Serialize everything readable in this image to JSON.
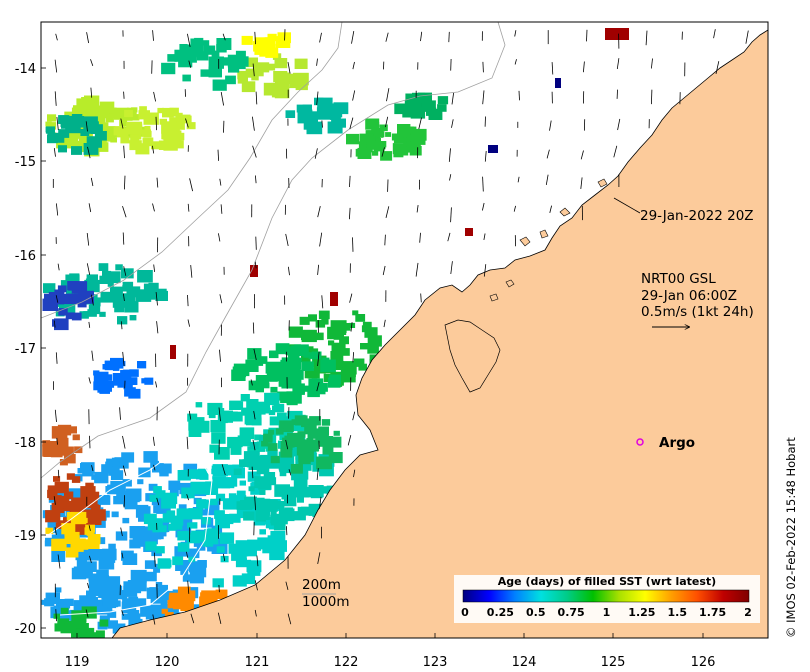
{
  "map": {
    "x_ticks": [
      "119",
      "120",
      "121",
      "122",
      "123",
      "124",
      "125",
      "126"
    ],
    "y_ticks": [
      "-14",
      "-15",
      "-16",
      "-17",
      "-18",
      "-19",
      "-20"
    ],
    "x_range": [
      118.6,
      126.7
    ],
    "y_range": [
      -20.1,
      -13.5
    ],
    "land_color": "#fccb9b",
    "sea_color": "#ffffff"
  },
  "annotations": {
    "timestamp": "29-Jan-2022 20Z",
    "current_source": "NRT00 GSL",
    "current_time": "29-Jan 06:00Z",
    "scale_label": "0.5m/s (1kt 24h)",
    "argo_label": "Argo",
    "depth_200": "200m",
    "depth_1000": "1000m"
  },
  "colorbar": {
    "title": "Age (days) of filled SST (wrt latest)",
    "tick_labels": [
      "0",
      "0.25",
      "0.5",
      "0.75",
      "1",
      "1.25",
      "1.5",
      "1.75",
      "2"
    ],
    "stops": [
      "#00007f",
      "#0000ff",
      "#0080ff",
      "#00e0e0",
      "#00cc88",
      "#00c000",
      "#a8e000",
      "#ffff00",
      "#ffa000",
      "#ff5000",
      "#c00000",
      "#7f0000"
    ]
  },
  "credit": "© IMOS 02-Feb-2022 15:48 Hobart"
}
